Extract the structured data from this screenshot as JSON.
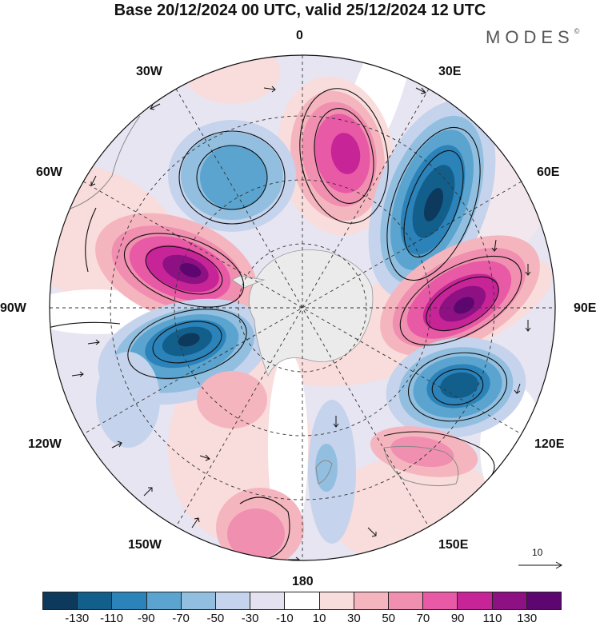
{
  "title": "Base 20/12/2024 00 UTC, valid 25/12/2024 12 UTC",
  "logo": "MODES",
  "logo_mark": "©",
  "longitude_labels": {
    "top": "0",
    "top_right": "30E",
    "right_upper": "60E",
    "right": "90E",
    "right_lower": "120E",
    "bottom_right": "150E",
    "bottom": "180",
    "bottom_left": "150W",
    "left_lower": "120W",
    "left": "90W",
    "left_upper": "60W",
    "top_left": "30W"
  },
  "reference_vector_label": "10",
  "colorbar": {
    "colors": [
      "#0d3a5c",
      "#135f8c",
      "#2b83b9",
      "#5aa4cf",
      "#92bfe0",
      "#c5d3ec",
      "#e4e2f0",
      "#ffffff",
      "#f9dcdc",
      "#f5b5bf",
      "#f08fb0",
      "#e85aa5",
      "#c72597",
      "#8e1184",
      "#5d0670"
    ],
    "tick_labels": [
      "-130",
      "-110",
      "-90",
      "-70",
      "-50",
      "-30",
      "-10",
      "10",
      "30",
      "50",
      "70",
      "90",
      "110",
      "130"
    ]
  }
}
